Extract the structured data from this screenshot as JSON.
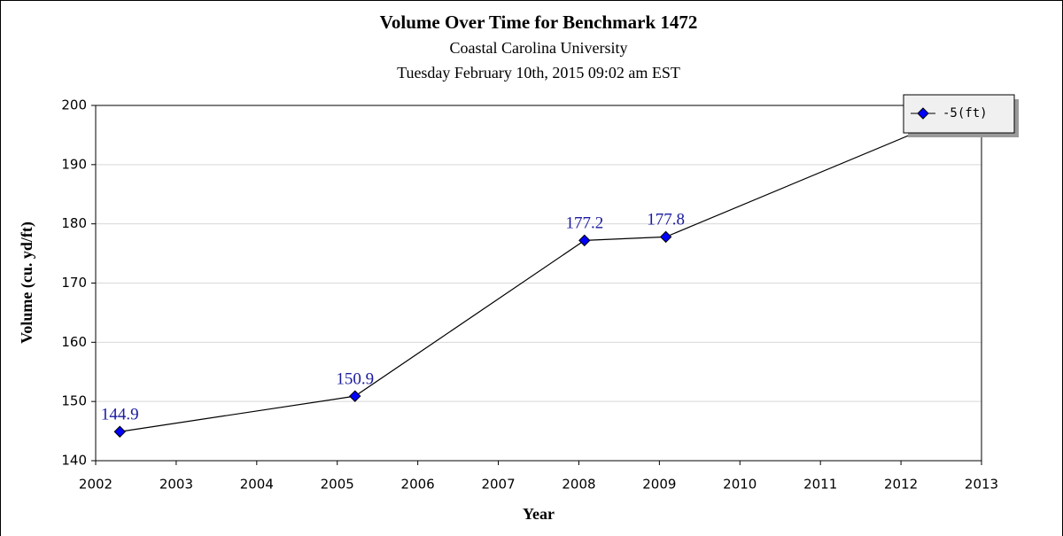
{
  "chart_data": {
    "type": "line",
    "title": "Volume Over Time for Benchmark 1472",
    "subtitle": "Coastal Carolina University",
    "date": "Tuesday February 10th, 2015 09:02 am EST",
    "x_label": "Year",
    "y_label": "Volume (cu. yd/ft)",
    "series": [
      {
        "name": "-5(ft)",
        "color": "#0000ff",
        "x": [
          2002.3,
          2005.22,
          2008.07,
          2009.08,
          2012.25
        ],
        "values": [
          144.9,
          150.9,
          177.2,
          177.8,
          195.8
        ]
      }
    ],
    "xlim": [
      2002,
      2013
    ],
    "xticks": [
      2002,
      2003,
      2004,
      2005,
      2006,
      2007,
      2008,
      2009,
      2010,
      2011,
      2012,
      2013
    ],
    "ylim": [
      140,
      200
    ],
    "yticks": [
      140,
      150,
      160,
      170,
      180,
      190,
      200
    ],
    "grid": true,
    "legend": "top-right"
  }
}
